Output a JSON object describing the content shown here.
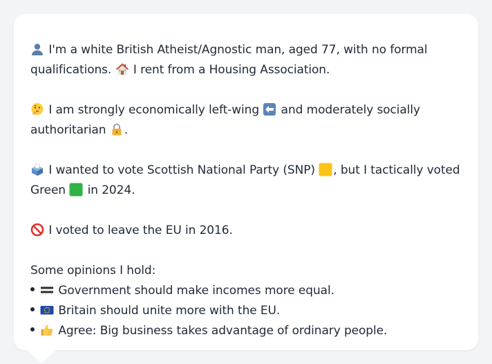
{
  "profile": {
    "line1a": "I'm a white British Atheist/Agnostic man, aged 77, with no formal",
    "line1b": "qualifications.",
    "line1c": "I rent from a Housing Association.",
    "line2a": "I am strongly economically left-wing",
    "line2b": "and moderately socially",
    "line2c": "authoritarian",
    "line2d": ".",
    "line3a": "I wanted to vote Scottish National Party (SNP)",
    "line3b": ", but I tactically voted",
    "line3c": "Green",
    "line3d": "in 2024.",
    "line4": "I voted to leave the EU in 2016.",
    "opinions_heading": "Some opinions I hold:",
    "opinions": [
      "Government should make incomes more equal.",
      "Britain should unite more with the EU.",
      "Agree: Big business takes advantage of ordinary people."
    ],
    "icons": {
      "person": "person-silhouette-icon",
      "house": "house-icon",
      "thinking": "thinking-face-icon",
      "left_arrow": "left-arrow-icon",
      "lock": "padlock-icon",
      "ballot": "ballot-box-icon",
      "yellow_square": "yellow-square-icon",
      "green_square": "green-square-icon",
      "no_entry": "prohibited-icon",
      "equals": "heavy-equals-icon",
      "eu_flag": "eu-flag-icon",
      "thumbs_up": "thumbs-up-icon"
    },
    "colors": {
      "snp_yellow": "#fcc419",
      "green": "#2fb344",
      "text": "#1f2937",
      "background": "#f3f4f6",
      "bubble": "#ffffff"
    }
  }
}
